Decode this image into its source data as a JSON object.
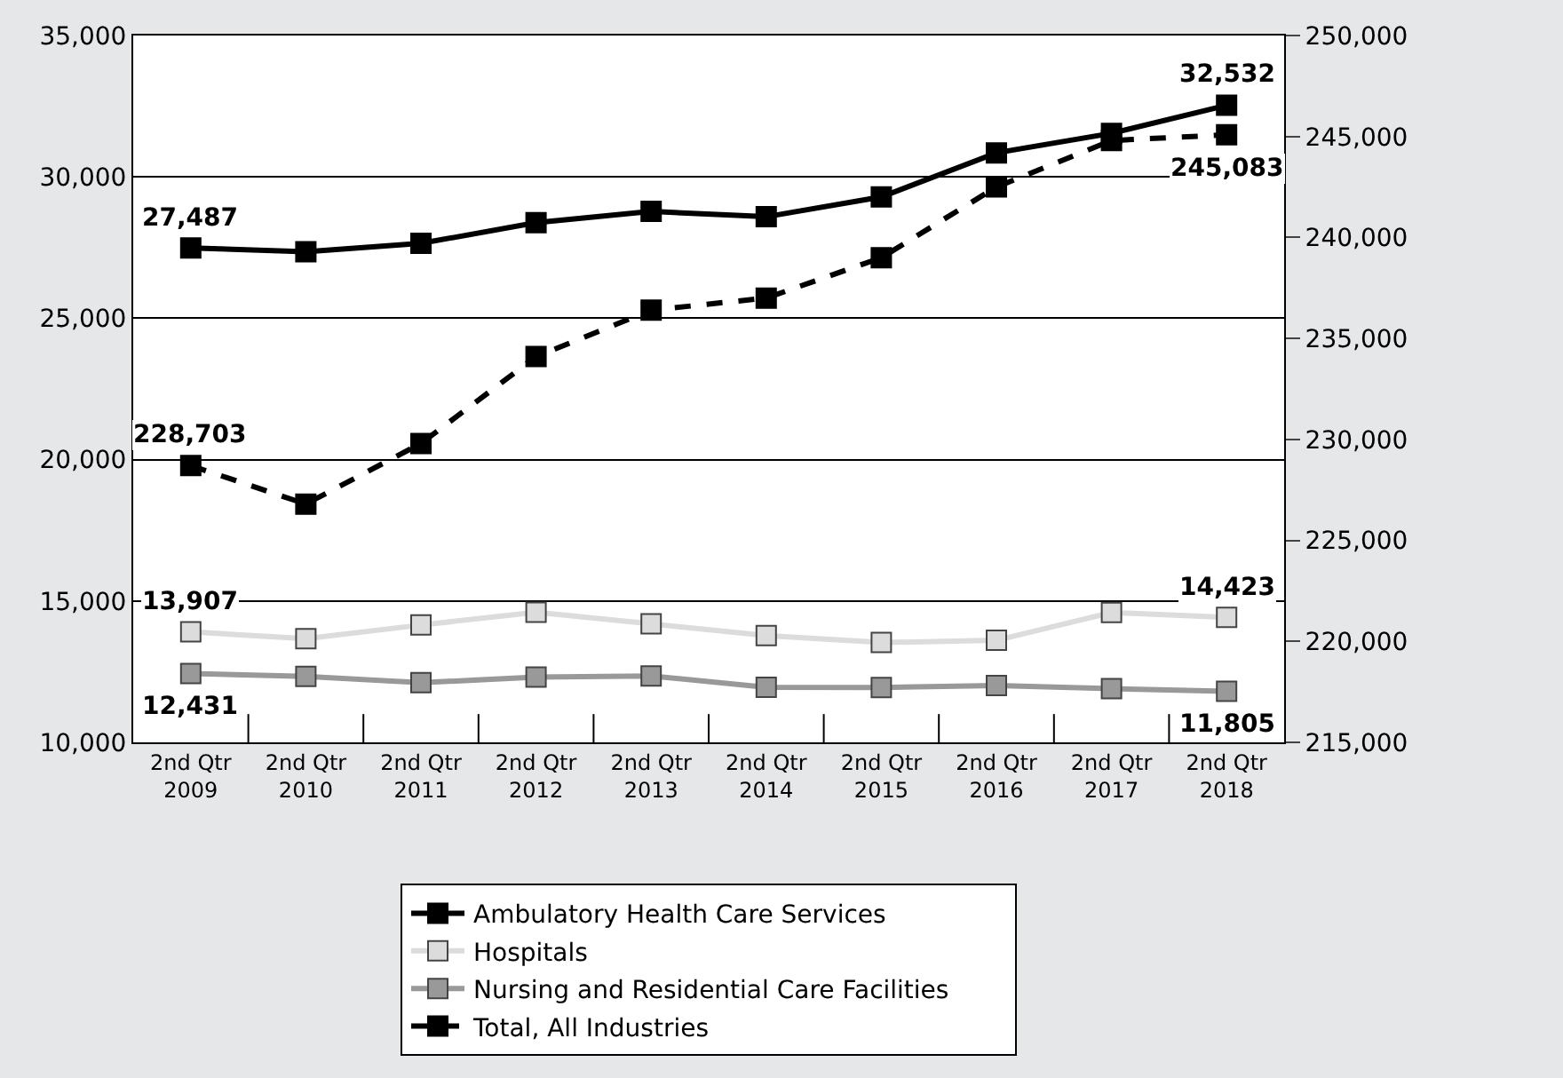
{
  "chart_data": {
    "type": "line",
    "categories": [
      "2nd Qtr\n2009",
      "2nd Qtr\n2010",
      "2nd Qtr\n2011",
      "2nd Qtr\n2012",
      "2nd Qtr\n2013",
      "2nd Qtr\n2014",
      "2nd Qtr\n2015",
      "2nd Qtr\n2016",
      "2nd Qtr\n2017",
      "2nd Qtr\n2018"
    ],
    "series": [
      {
        "name": "Ambulatory Health Care Services",
        "color": "#000000",
        "line_style": "solid",
        "values": [
          27487,
          27350,
          27650,
          28380,
          28780,
          28590,
          29290,
          30850,
          31540,
          32532
        ],
        "value_labels": [
          "27,487",
          null,
          null,
          null,
          null,
          null,
          null,
          null,
          null,
          "32,532"
        ]
      },
      {
        "name": "Hospitals",
        "color": "#dcdcdc",
        "line_style": "solid",
        "values": [
          13907,
          13670,
          14150,
          14600,
          14190,
          13780,
          13530,
          13610,
          14590,
          14423
        ],
        "value_labels": [
          "13,907",
          null,
          null,
          null,
          null,
          null,
          null,
          null,
          null,
          "14,423"
        ]
      },
      {
        "name": "Nursing and Residential Care Facilities",
        "color": "#999999",
        "line_style": "solid",
        "values": [
          12431,
          12330,
          12110,
          12310,
          12350,
          11950,
          11940,
          12010,
          11900,
          11805
        ],
        "value_labels": [
          "12,431",
          null,
          null,
          null,
          null,
          null,
          null,
          null,
          null,
          "11,805"
        ]
      },
      {
        "name": "Total, All Industries",
        "color": "#000000",
        "line_style": "dashed",
        "axis": "y2",
        "values": [
          228703,
          226800,
          229800,
          234100,
          236400,
          237000,
          239000,
          242500,
          244800,
          245083
        ],
        "value_labels": [
          "228,703",
          null,
          null,
          null,
          null,
          null,
          null,
          null,
          null,
          "245,083"
        ]
      }
    ],
    "ylim": [
      10000,
      35000
    ],
    "yticks": [
      {
        "value": 10000,
        "label": "10,000"
      },
      {
        "value": 15000,
        "label": "15,000"
      },
      {
        "value": 20000,
        "label": "20,000"
      },
      {
        "value": 25000,
        "label": "25,000"
      },
      {
        "value": 30000,
        "label": "30,000"
      },
      {
        "value": 35000,
        "label": "35,000"
      }
    ],
    "y2lim": [
      215000,
      250000
    ],
    "y2ticks": [
      {
        "value": 215000,
        "label": "215,000"
      },
      {
        "value": 220000,
        "label": "220,000"
      },
      {
        "value": 225000,
        "label": "225,000"
      },
      {
        "value": 230000,
        "label": "230,000"
      },
      {
        "value": 235000,
        "label": "235,000"
      },
      {
        "value": 240000,
        "label": "240,000"
      },
      {
        "value": 245000,
        "label": "245,000"
      },
      {
        "value": 250000,
        "label": "250,000"
      }
    ],
    "grid": "y",
    "legend": "bottom",
    "marker": "square"
  }
}
